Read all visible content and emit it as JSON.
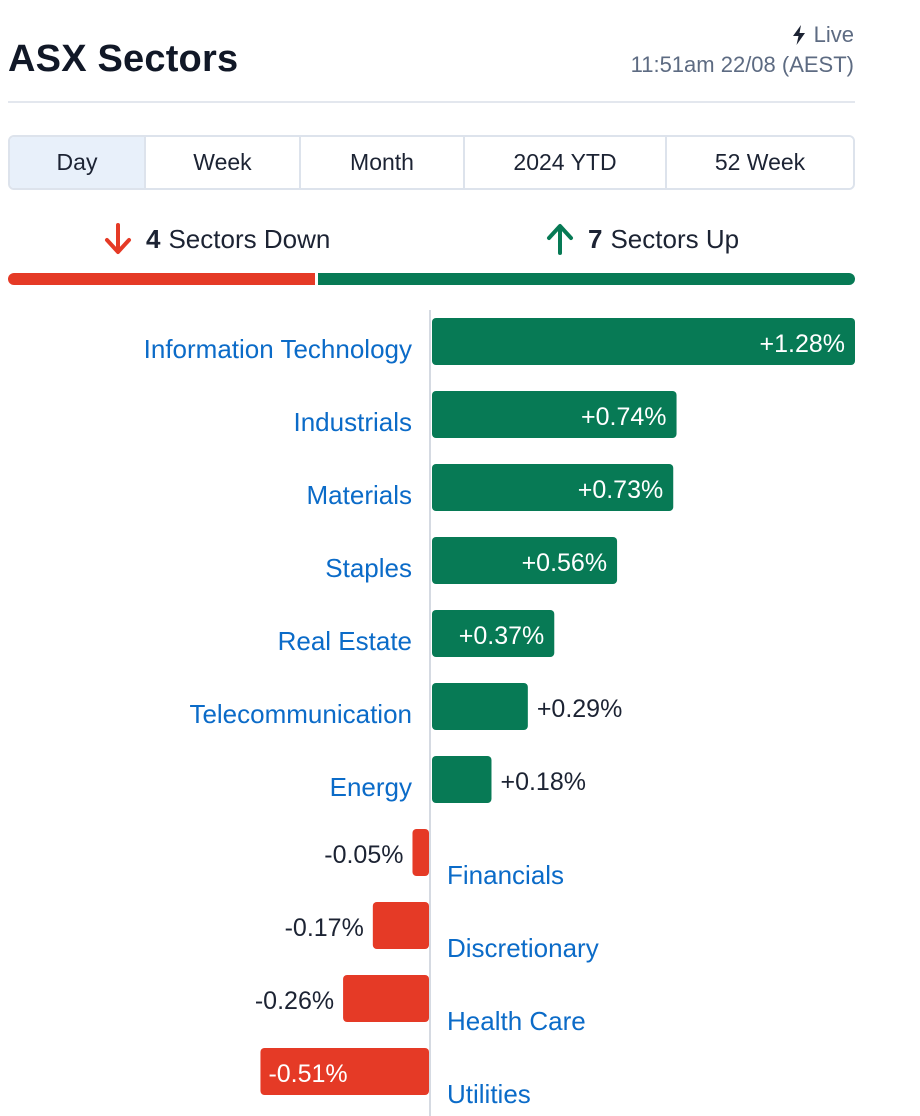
{
  "header": {
    "title": "ASX Sectors",
    "live_label": "Live",
    "timestamp": "11:51am 22/08 (AEST)"
  },
  "tabs": [
    {
      "label": "Day",
      "active": true
    },
    {
      "label": "Week",
      "active": false
    },
    {
      "label": "Month",
      "active": false
    },
    {
      "label": "2024 YTD",
      "active": false
    },
    {
      "label": "52 Week",
      "active": false
    }
  ],
  "summary": {
    "down_count": "4",
    "down_label": "Sectors Down",
    "up_count": "7",
    "up_label": "Sectors Up"
  },
  "colors": {
    "up": "#077a55",
    "down": "#e53a26",
    "link": "#0b6bc8",
    "text": "#1c2333"
  },
  "chart_data": {
    "type": "bar",
    "orientation": "horizontal",
    "categories": [
      "Information Technology",
      "Industrials",
      "Materials",
      "Staples",
      "Real Estate",
      "Telecommunication",
      "Energy",
      "Financials",
      "Discretionary",
      "Health Care",
      "Utilities"
    ],
    "values": [
      1.28,
      0.74,
      0.73,
      0.56,
      0.37,
      0.29,
      0.18,
      -0.05,
      -0.17,
      -0.26,
      -0.51
    ],
    "value_labels": [
      "+1.28%",
      "+0.74%",
      "+0.73%",
      "+0.56%",
      "+0.37%",
      "+0.29%",
      "+0.18%",
      "-0.05%",
      "-0.17%",
      "-0.26%",
      "-0.51%"
    ],
    "unit": "%",
    "xlim": [
      -0.51,
      1.28
    ]
  }
}
